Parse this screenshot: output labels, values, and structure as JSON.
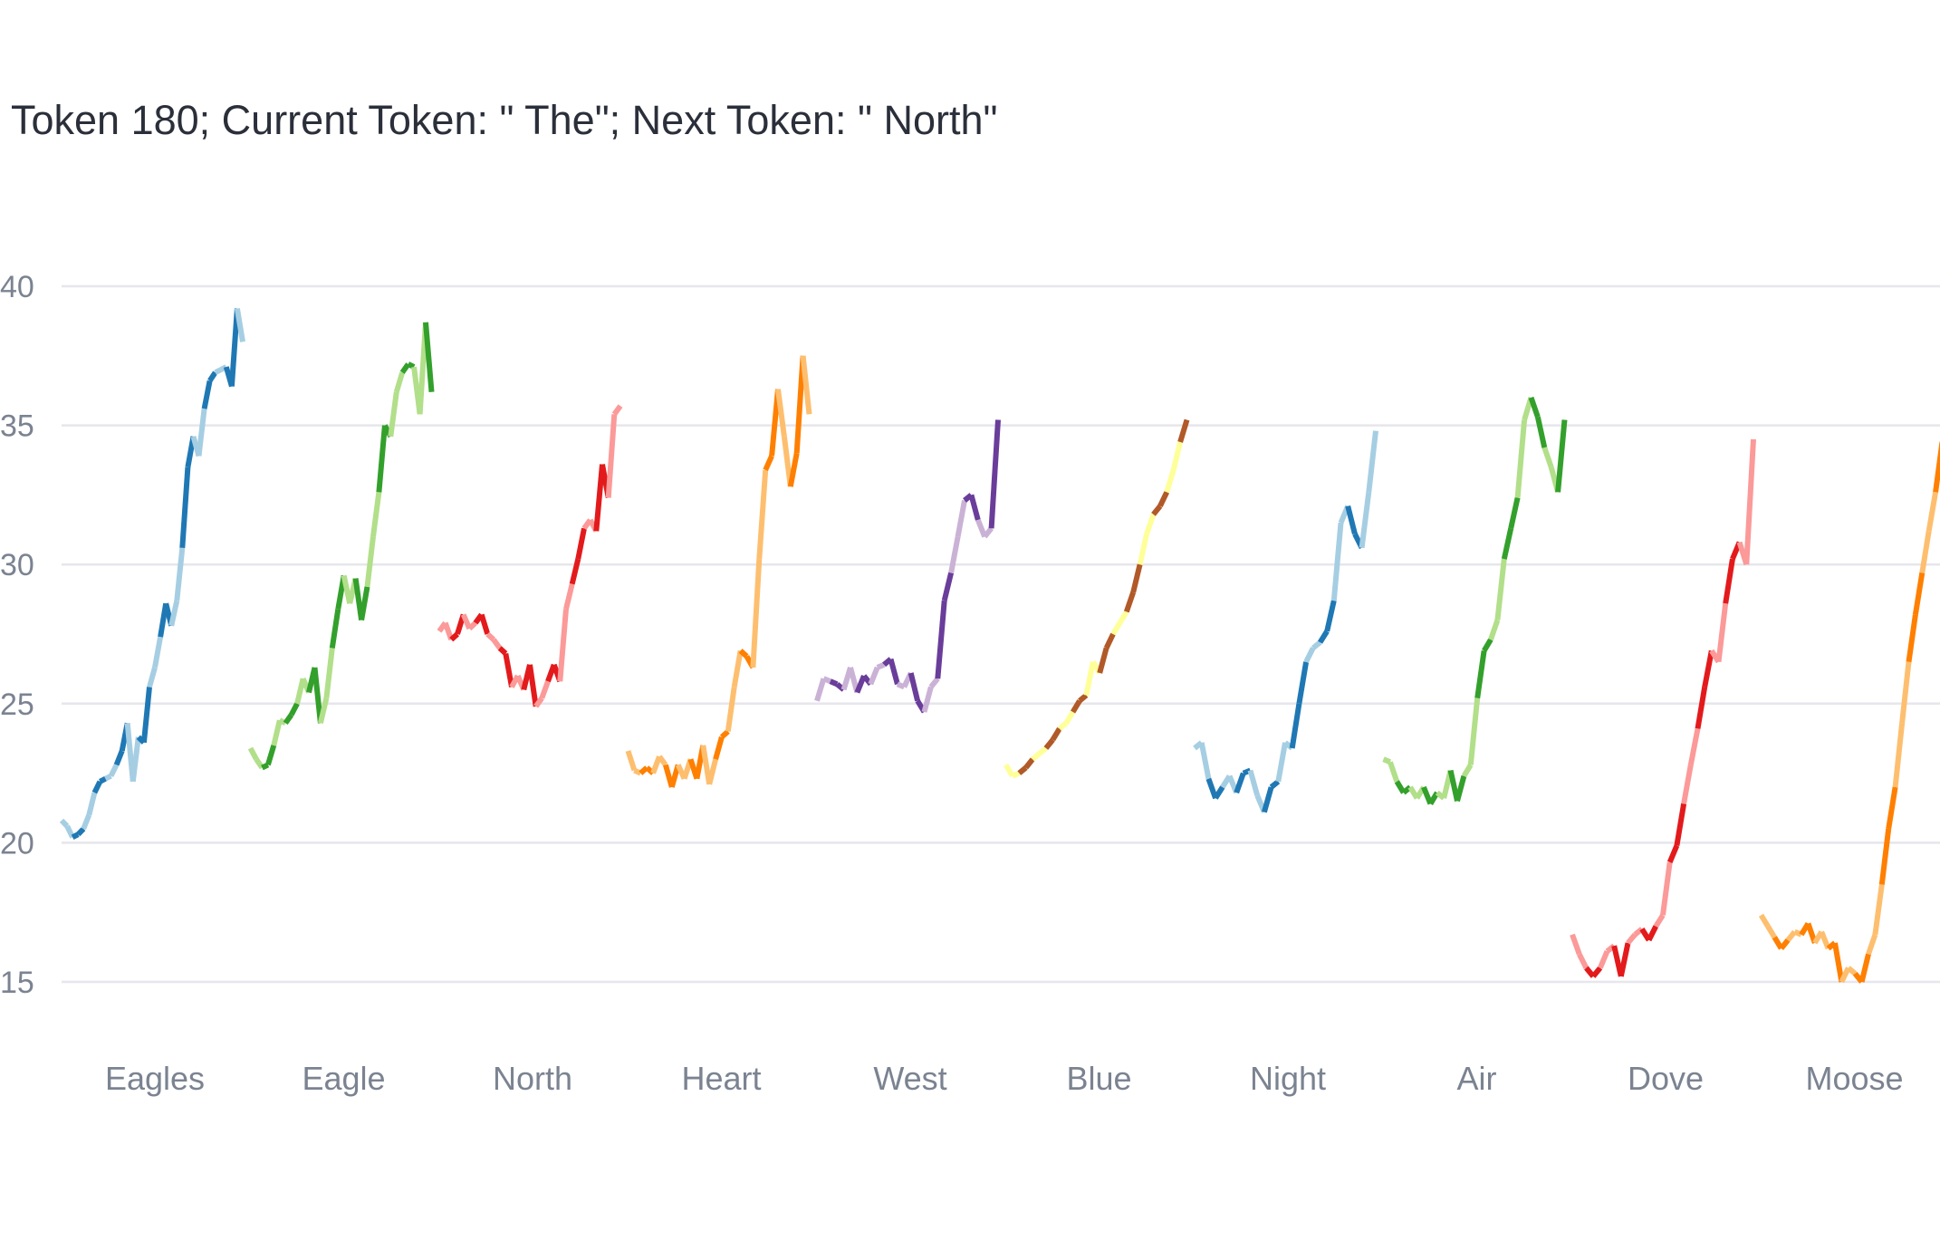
{
  "chart_data": {
    "type": "line",
    "title": "Token 180; Current Token: \" The\"; Next Token: \" North\"",
    "xlabel": "",
    "ylabel": "",
    "ylim": [
      13,
      42
    ],
    "yticks": [
      15,
      20,
      25,
      30,
      35,
      40
    ],
    "grid": true,
    "legend": "none",
    "series": [
      {
        "category": "Eagles",
        "colors": [
          "#a6cee3",
          "#1f78b4"
        ],
        "values": [
          20.8,
          20.6,
          20.2,
          20.3,
          20.5,
          21.0,
          21.8,
          22.2,
          22.3,
          22.4,
          22.8,
          23.3,
          24.3,
          22.2,
          23.8,
          23.6,
          25.6,
          26.3,
          27.4,
          28.6,
          27.8,
          28.7,
          30.6,
          33.5,
          34.6,
          33.9,
          35.6,
          36.6,
          36.9,
          37.0,
          37.1,
          36.4,
          39.2,
          38.0
        ]
      },
      {
        "category": "Eagle",
        "colors": [
          "#b2df8a",
          "#33a02c"
        ],
        "values": [
          23.4,
          23.0,
          22.7,
          22.8,
          23.5,
          24.4,
          24.3,
          24.6,
          25.0,
          25.9,
          25.4,
          26.3,
          24.3,
          25.2,
          27.0,
          28.4,
          29.6,
          28.6,
          29.5,
          28.0,
          29.2,
          31.0,
          32.6,
          35.0,
          34.6,
          36.2,
          36.9,
          37.2,
          37.1,
          35.4,
          38.7,
          36.2
        ]
      },
      {
        "category": "North",
        "colors": [
          "#fb9a99",
          "#e31a1c"
        ],
        "values": [
          27.6,
          27.9,
          27.3,
          27.5,
          28.2,
          27.7,
          27.9,
          28.2,
          27.5,
          27.3,
          27.0,
          26.8,
          25.6,
          26.0,
          25.5,
          26.4,
          24.9,
          25.2,
          25.8,
          26.4,
          25.8,
          28.4,
          29.3,
          30.2,
          31.3,
          31.6,
          31.2,
          33.6,
          32.4,
          35.4,
          35.7
        ]
      },
      {
        "category": "Heart",
        "colors": [
          "#fdbf6f",
          "#ff7f00"
        ],
        "values": [
          23.3,
          22.6,
          22.5,
          22.7,
          22.5,
          23.1,
          22.8,
          22.0,
          22.8,
          22.3,
          23.0,
          22.3,
          23.5,
          22.1,
          23.0,
          23.8,
          24.0,
          25.6,
          26.9,
          26.7,
          26.3,
          30.2,
          33.4,
          33.9,
          36.3,
          34.6,
          32.8,
          34.0,
          37.5,
          35.4
        ]
      },
      {
        "category": "West",
        "colors": [
          "#cab2d6",
          "#6a3d9a"
        ],
        "values": [
          25.1,
          25.9,
          25.8,
          25.7,
          25.5,
          26.3,
          25.4,
          26.0,
          25.7,
          26.3,
          26.4,
          26.6,
          25.7,
          25.6,
          26.1,
          25.1,
          24.7,
          25.6,
          25.9,
          28.7,
          29.7,
          31.0,
          32.3,
          32.5,
          31.6,
          31.0,
          31.3,
          35.2
        ]
      },
      {
        "category": "Blue",
        "colors": [
          "#ffff99",
          "#b15928"
        ],
        "values": [
          22.8,
          22.4,
          22.5,
          22.7,
          23.0,
          23.2,
          23.4,
          23.7,
          24.1,
          24.3,
          24.7,
          25.1,
          25.3,
          26.5,
          26.1,
          27.0,
          27.5,
          27.9,
          28.3,
          29.0,
          30.0,
          31.1,
          31.8,
          32.1,
          32.6,
          33.4,
          34.4,
          35.2
        ]
      },
      {
        "category": "Night",
        "colors": [
          "#a6cee3",
          "#1f78b4"
        ],
        "values": [
          23.4,
          23.6,
          22.3,
          21.6,
          22.0,
          22.4,
          21.8,
          22.5,
          22.6,
          21.7,
          21.1,
          22.0,
          22.2,
          23.6,
          23.4,
          25.0,
          26.5,
          27.0,
          27.2,
          27.6,
          28.7,
          31.5,
          32.1,
          31.1,
          30.6,
          32.6,
          34.8
        ]
      },
      {
        "category": "Air",
        "colors": [
          "#b2df8a",
          "#33a02c"
        ],
        "values": [
          23.0,
          22.9,
          22.2,
          21.8,
          22.0,
          21.6,
          22.0,
          21.4,
          21.8,
          21.6,
          22.6,
          21.5,
          22.4,
          22.8,
          25.2,
          26.9,
          27.3,
          28.0,
          30.2,
          31.3,
          32.4,
          35.2,
          36.0,
          35.3,
          34.2,
          33.5,
          32.6,
          35.2
        ]
      },
      {
        "category": "Dove",
        "colors": [
          "#fb9a99",
          "#e31a1c"
        ],
        "values": [
          16.7,
          16.0,
          15.5,
          15.2,
          15.5,
          16.1,
          16.3,
          15.2,
          16.4,
          16.7,
          16.9,
          16.5,
          17.0,
          17.4,
          19.3,
          19.9,
          21.4,
          22.8,
          24.1,
          25.6,
          26.9,
          26.5,
          28.6,
          30.2,
          30.8,
          30.0,
          34.5
        ]
      },
      {
        "category": "Moose",
        "colors": [
          "#fdbf6f",
          "#ff7f00"
        ],
        "values": [
          17.4,
          17.0,
          16.6,
          16.2,
          16.5,
          16.8,
          16.7,
          17.1,
          16.4,
          16.8,
          16.2,
          16.4,
          15.0,
          15.5,
          15.3,
          15.0,
          16.0,
          16.7,
          18.5,
          20.5,
          22.0,
          24.3,
          26.5,
          28.2,
          29.7,
          31.2,
          32.6,
          34.4
        ]
      }
    ]
  }
}
